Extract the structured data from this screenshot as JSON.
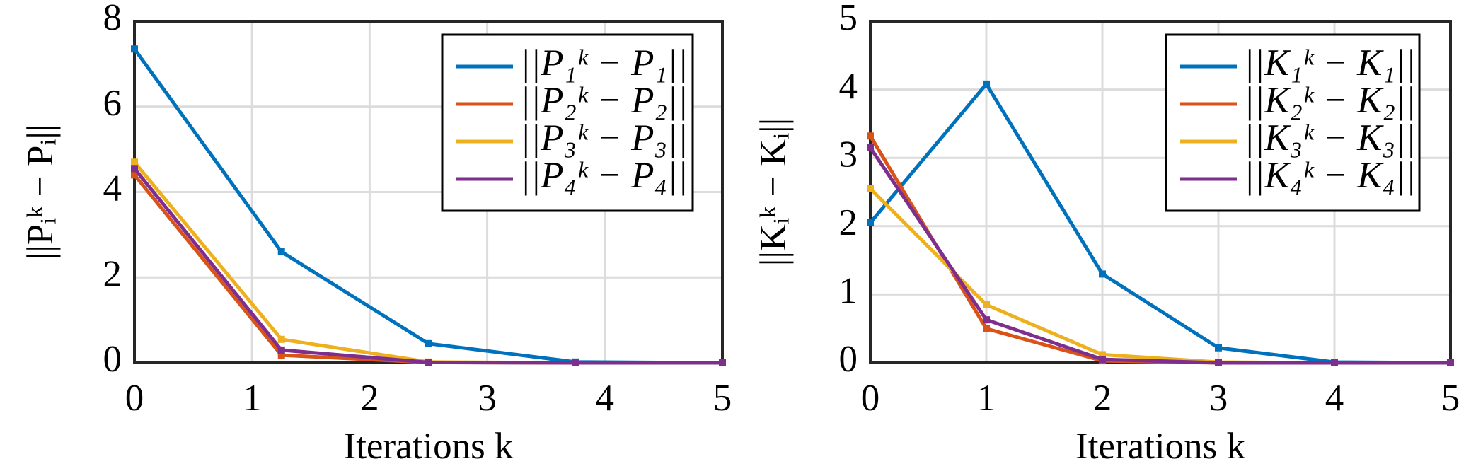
{
  "chart_data": [
    {
      "type": "line",
      "xlabel": "Iterations k",
      "ylabel": "||Pᵢᵏ − Pᵢ||",
      "x": [
        0,
        1.25,
        2.5,
        3.75,
        5
      ],
      "xlim": [
        0,
        5
      ],
      "xticks": [
        0,
        1,
        2,
        3,
        4,
        5
      ],
      "ylim": [
        0,
        8
      ],
      "yticks": [
        0,
        2,
        4,
        6,
        8
      ],
      "grid": true,
      "legend": "northeast",
      "series": [
        {
          "name": "||P₁ᵏ − P₁||",
          "color": "#0072BD",
          "values": [
            7.35,
            2.6,
            0.45,
            0.02,
            0
          ]
        },
        {
          "name": "||P₂ᵏ − P₂||",
          "color": "#D95319",
          "values": [
            4.4,
            0.18,
            0.01,
            0,
            0
          ]
        },
        {
          "name": "||P₃ᵏ − P₃||",
          "color": "#EDB120",
          "values": [
            4.7,
            0.55,
            0.02,
            0,
            0
          ]
        },
        {
          "name": "||P₄ᵏ − P₄||",
          "color": "#7E2F8E",
          "values": [
            4.55,
            0.3,
            0.01,
            0,
            0
          ]
        }
      ]
    },
    {
      "type": "line",
      "xlabel": "Iterations k",
      "ylabel": "||Kᵢᵏ − Kᵢ||",
      "x": [
        0,
        1,
        2,
        3,
        4,
        5
      ],
      "xlim": [
        0,
        5
      ],
      "xticks": [
        0,
        1,
        2,
        3,
        4,
        5
      ],
      "ylim": [
        0,
        5
      ],
      "yticks": [
        0,
        1,
        2,
        3,
        4,
        5
      ],
      "grid": true,
      "legend": "northeast",
      "series": [
        {
          "name": "||K₁ᵏ − K₁||",
          "color": "#0072BD",
          "values": [
            2.05,
            4.08,
            1.3,
            0.22,
            0.01,
            0
          ]
        },
        {
          "name": "||K₂ᵏ − K₂||",
          "color": "#D95319",
          "values": [
            3.32,
            0.5,
            0.03,
            0,
            0,
            0
          ]
        },
        {
          "name": "||K₃ᵏ − K₃||",
          "color": "#EDB120",
          "values": [
            2.55,
            0.85,
            0.12,
            0.01,
            0,
            0
          ]
        },
        {
          "name": "||K₄ᵏ − K₄||",
          "color": "#7E2F8E",
          "values": [
            3.15,
            0.63,
            0.05,
            0,
            0,
            0
          ]
        }
      ]
    }
  ]
}
